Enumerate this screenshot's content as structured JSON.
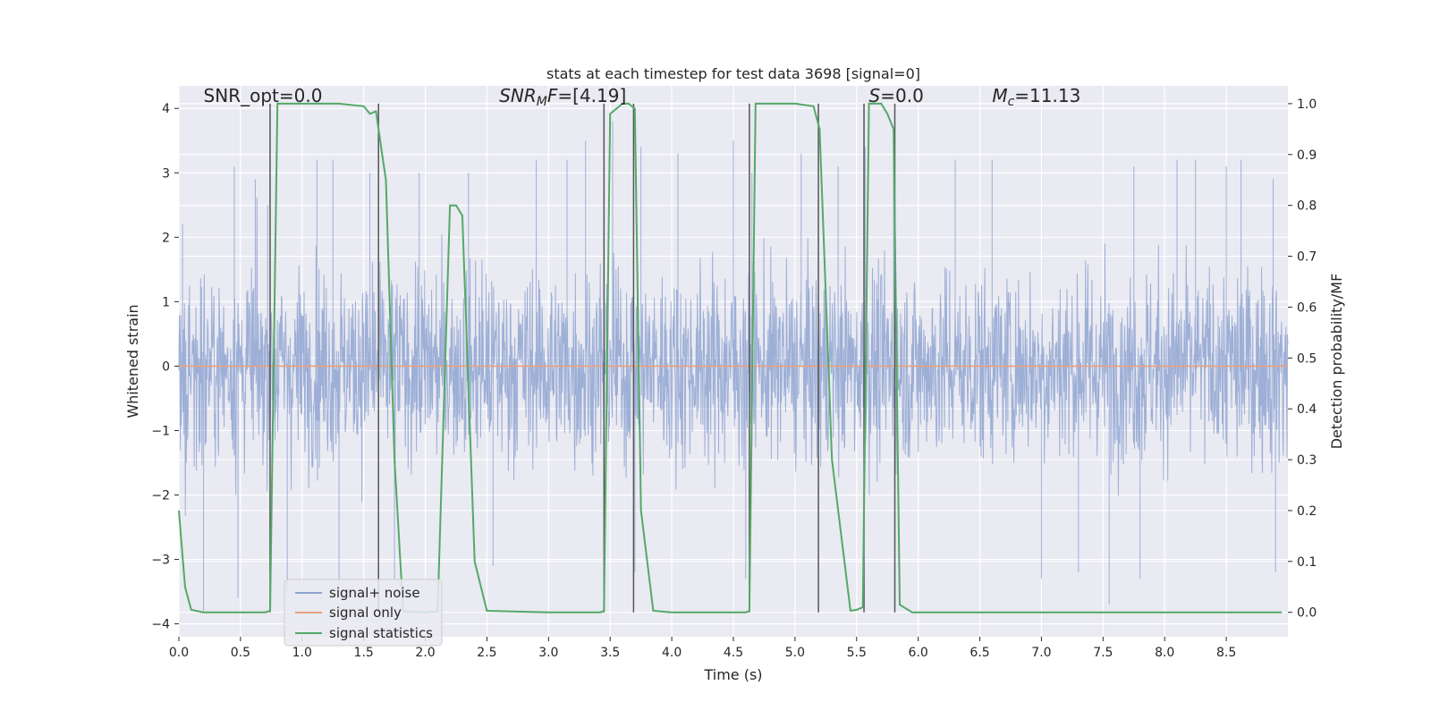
{
  "chart_data": {
    "type": "line",
    "title": "stats at each timestep for test data 3698 [signal=0]",
    "xlabel": "Time (s)",
    "ylabel": "Whitened strain",
    "y2label": "Detection probability/MF",
    "xlim": [
      0,
      9.0
    ],
    "ylim": [
      -4.2,
      4.35
    ],
    "y2lim": [
      -0.048,
      1.035
    ],
    "x_ticks": [
      0.0,
      0.5,
      1.0,
      1.5,
      2.0,
      2.5,
      3.0,
      3.5,
      4.0,
      4.5,
      5.0,
      5.5,
      6.0,
      6.5,
      7.0,
      7.5,
      8.0,
      8.5
    ],
    "x_tick_labels": [
      "0.0",
      "0.5",
      "1.0",
      "1.5",
      "2.0",
      "2.5",
      "3.0",
      "3.5",
      "4.0",
      "4.5",
      "5.0",
      "5.5",
      "6.0",
      "6.5",
      "7.0",
      "7.5",
      "8.0",
      "8.5"
    ],
    "y_ticks": [
      -4,
      -3,
      -2,
      -1,
      0,
      1,
      2,
      3,
      4
    ],
    "y_tick_labels": [
      "−4",
      "−3",
      "−2",
      "−1",
      "0",
      "1",
      "2",
      "3",
      "4"
    ],
    "y2_ticks": [
      0.0,
      0.1,
      0.2,
      0.3,
      0.4,
      0.5,
      0.6,
      0.7,
      0.8,
      0.9,
      1.0
    ],
    "y2_tick_labels": [
      "0.0",
      "0.1",
      "0.2",
      "0.3",
      "0.4",
      "0.5",
      "0.6",
      "0.7",
      "0.8",
      "0.9",
      "1.0"
    ],
    "grid": true,
    "legend_position": "bottom-left",
    "annotations": [
      {
        "text": "SNR_opt=0.0",
        "x": 0.2,
        "y": 4.1
      },
      {
        "text": "SNR_MF=[4.19]",
        "x": 2.6,
        "y": 4.1
      },
      {
        "text": "S=0.0",
        "x": 5.6,
        "y": 4.1
      },
      {
        "text": "M_c=11.13",
        "x": 6.6,
        "y": 4.1
      }
    ],
    "series": [
      {
        "name": "signal+ noise",
        "color": "#8fa5d1",
        "style": "dense whitened-noise trace, amplitude roughly within ±3.5",
        "peak_values": [
          {
            "x": 0.03,
            "y": 2.2
          },
          {
            "x": 0.2,
            "y": -3.8
          },
          {
            "x": 0.45,
            "y": 3.1
          },
          {
            "x": 0.48,
            "y": -3.6
          },
          {
            "x": 0.62,
            "y": 2.9
          },
          {
            "x": 0.72,
            "y": 2.5
          },
          {
            "x": 0.88,
            "y": -3.5
          },
          {
            "x": 1.12,
            "y": 3.2
          },
          {
            "x": 1.25,
            "y": 3.2
          },
          {
            "x": 1.3,
            "y": -3.5
          },
          {
            "x": 1.55,
            "y": 3.0
          },
          {
            "x": 1.75,
            "y": -3.3
          },
          {
            "x": 1.95,
            "y": 3.0
          },
          {
            "x": 2.35,
            "y": 3.0
          },
          {
            "x": 2.55,
            "y": -3.1
          },
          {
            "x": 2.9,
            "y": 3.2
          },
          {
            "x": 3.15,
            "y": 3.2
          },
          {
            "x": 3.3,
            "y": 3.5
          },
          {
            "x": 3.52,
            "y": 3.8
          },
          {
            "x": 3.7,
            "y": -3.2
          },
          {
            "x": 3.75,
            "y": 3.4
          },
          {
            "x": 4.05,
            "y": 3.3
          },
          {
            "x": 4.5,
            "y": 3.5
          },
          {
            "x": 4.6,
            "y": -3.3
          },
          {
            "x": 4.65,
            "y": 3.0
          },
          {
            "x": 5.05,
            "y": 3.3
          },
          {
            "x": 5.35,
            "y": 3.1
          },
          {
            "x": 5.57,
            "y": 3.4
          },
          {
            "x": 5.8,
            "y": 3.2
          },
          {
            "x": 6.3,
            "y": 3.2
          },
          {
            "x": 6.6,
            "y": 3.2
          },
          {
            "x": 7.0,
            "y": -3.3
          },
          {
            "x": 7.3,
            "y": -3.2
          },
          {
            "x": 7.55,
            "y": -3.7
          },
          {
            "x": 7.75,
            "y": 3.1
          },
          {
            "x": 7.8,
            "y": -3.3
          },
          {
            "x": 8.1,
            "y": 3.2
          },
          {
            "x": 8.25,
            "y": 3.2
          },
          {
            "x": 8.5,
            "y": 3.1
          },
          {
            "x": 8.62,
            "y": 3.2
          },
          {
            "x": 8.88,
            "y": 2.9
          },
          {
            "x": 8.9,
            "y": -3.2
          }
        ]
      },
      {
        "name": "signal only",
        "color": "#e7a17f",
        "x": [
          0.0,
          9.0
        ],
        "y": [
          0.0,
          0.0
        ]
      },
      {
        "name": "signal statistics",
        "color": "#55a868",
        "axis": "right",
        "x": [
          0.0,
          0.05,
          0.1,
          0.2,
          0.5,
          0.7,
          0.74,
          0.8,
          1.0,
          1.3,
          1.5,
          1.55,
          1.6,
          1.65,
          1.68,
          1.75,
          1.82,
          2.0,
          2.1,
          2.2,
          2.25,
          2.3,
          2.4,
          2.5,
          3.0,
          3.42,
          3.45,
          3.5,
          3.6,
          3.65,
          3.7,
          3.75,
          3.85,
          4.0,
          4.5,
          4.6,
          4.63,
          4.68,
          4.8,
          5.0,
          5.15,
          5.2,
          5.3,
          5.45,
          5.5,
          5.55,
          5.6,
          5.7,
          5.75,
          5.8,
          5.85,
          5.95,
          6.5,
          8.95
        ],
        "y": [
          0.2,
          0.05,
          0.005,
          0.0,
          0.0,
          0.0,
          0.003,
          1.0,
          1.0,
          1.0,
          0.995,
          0.98,
          0.985,
          0.9,
          0.85,
          0.3,
          0.002,
          0.0,
          0.002,
          0.8,
          0.8,
          0.78,
          0.1,
          0.003,
          0.0,
          0.0,
          0.003,
          0.98,
          1.0,
          1.0,
          0.99,
          0.2,
          0.003,
          0.0,
          0.0,
          0.0,
          0.003,
          1.0,
          1.0,
          1.0,
          0.995,
          0.95,
          0.3,
          0.003,
          0.005,
          0.01,
          1.0,
          1.0,
          0.98,
          0.95,
          0.015,
          0.0,
          0.0,
          0.0
        ]
      }
    ],
    "vertical_lines": [
      0.74,
      1.62,
      3.45,
      3.69,
      4.63,
      5.19,
      5.56,
      5.81
    ],
    "vertical_line_color": "#555555"
  },
  "legend": [
    {
      "label": "signal+ noise",
      "color": "#8fa5d1"
    },
    {
      "label": "signal only",
      "color": "#e7a17f"
    },
    {
      "label": "signal statistics",
      "color": "#55a868"
    }
  ],
  "colors": {
    "plot_background": "#eaeaf2",
    "grid": "#ffffff",
    "text": "#262626"
  }
}
